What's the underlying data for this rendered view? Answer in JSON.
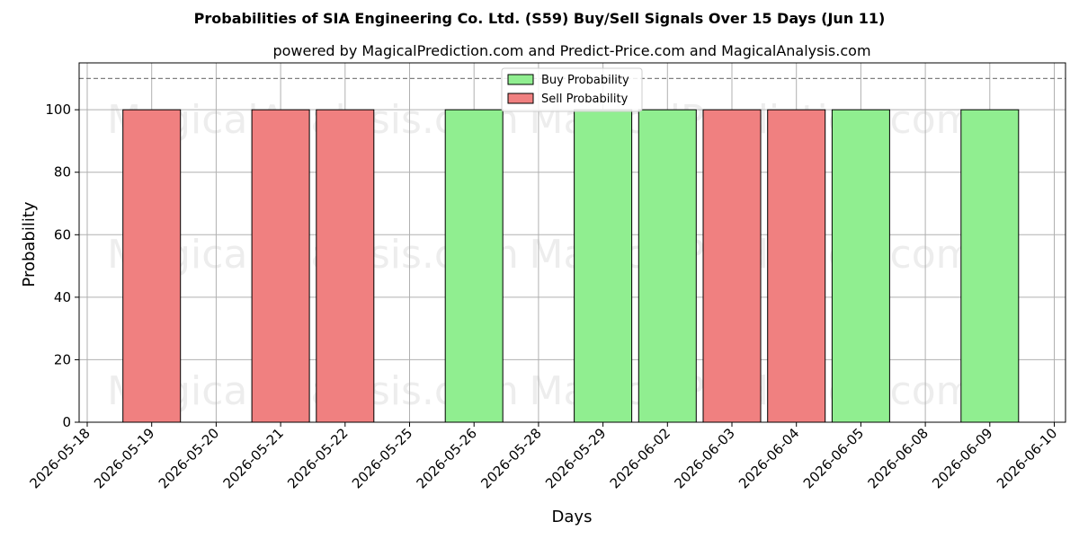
{
  "chart_data": {
    "type": "bar",
    "title": "Probabilities of SIA Engineering Co. Ltd. (S59) Buy/Sell Signals Over 15 Days (Jun 11)",
    "subtitle": "powered by MagicalPrediction.com and Predict-Price.com and MagicalAnalysis.com",
    "xlabel": "Days",
    "ylabel": "Probability",
    "ylim": [
      0,
      115
    ],
    "yticks": [
      0,
      20,
      40,
      60,
      80,
      100
    ],
    "reference_line": 110,
    "grid": true,
    "legend_position": "top-center",
    "x_ticks": [
      "2026-05-18",
      "2026-05-19",
      "2026-05-20",
      "2026-05-21",
      "2026-05-22",
      "2026-05-25",
      "2026-05-26",
      "2026-05-28",
      "2026-05-29",
      "2026-06-02",
      "2026-06-03",
      "2026-06-04",
      "2026-06-05",
      "2026-06-08",
      "2026-06-09",
      "2026-06-10"
    ],
    "series": [
      {
        "name": "Buy Probability",
        "color": "#90ee90",
        "points": [
          {
            "x": "2026-05-26",
            "y": 100
          },
          {
            "x": "2026-05-29",
            "y": 100
          },
          {
            "x": "2026-06-02",
            "y": 100
          },
          {
            "x": "2026-06-05",
            "y": 100
          },
          {
            "x": "2026-06-09",
            "y": 100
          }
        ]
      },
      {
        "name": "Sell Probability",
        "color": "#f08080",
        "points": [
          {
            "x": "2026-05-19",
            "y": 100
          },
          {
            "x": "2026-05-21",
            "y": 100
          },
          {
            "x": "2026-05-22",
            "y": 100
          },
          {
            "x": "2026-06-03",
            "y": 100
          },
          {
            "x": "2026-06-04",
            "y": 100
          }
        ]
      }
    ],
    "watermarks": [
      "MagicalAnalysis.com",
      "MagicalPrediction.com"
    ]
  }
}
